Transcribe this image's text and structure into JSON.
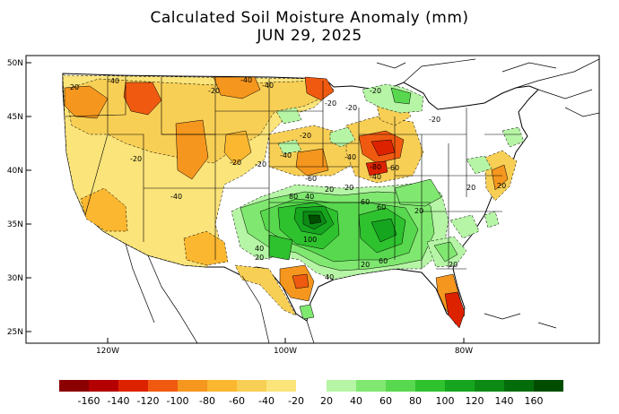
{
  "title": {
    "line1": "Calculated Soil Moisture Anomaly (mm)",
    "line2": "JUN 29, 2025"
  },
  "axes": {
    "lat_labels": [
      "50N",
      "45N",
      "40N",
      "35N",
      "30N",
      "25N"
    ],
    "lon_labels": [
      "120W",
      "100W",
      "80W"
    ]
  },
  "map": {
    "region": "Contiguous United States",
    "contour_labels": [
      "-40",
      "-20",
      "-40",
      "-20",
      "-40",
      "-20",
      "-20",
      "-20",
      "-20",
      "-40",
      "-20",
      "-40",
      "-20",
      "-20",
      "-20",
      "-60",
      "-40",
      "-80",
      "-60",
      "-40",
      "20",
      "40",
      "80",
      "60",
      "20",
      "60",
      "100",
      "40",
      "20",
      "60",
      "20",
      "20",
      "20",
      "20",
      "40",
      "20"
    ]
  },
  "legend": {
    "negative": {
      "labels": [
        "-160",
        "-140",
        "-120",
        "-100",
        "-80",
        "-60",
        "-40",
        "-20"
      ],
      "colors": [
        "#8b0000",
        "#b40000",
        "#dd2200",
        "#f05a10",
        "#f5961e",
        "#fbb72f",
        "#f8cf55",
        "#fbe47a"
      ]
    },
    "positive": {
      "labels": [
        "20",
        "40",
        "60",
        "80",
        "100",
        "120",
        "140",
        "160"
      ],
      "colors": [
        "#b5f5a5",
        "#80e870",
        "#58d84e",
        "#2ec22e",
        "#16a51f",
        "#0c8a14",
        "#056c0b",
        "#004d00"
      ]
    }
  }
}
